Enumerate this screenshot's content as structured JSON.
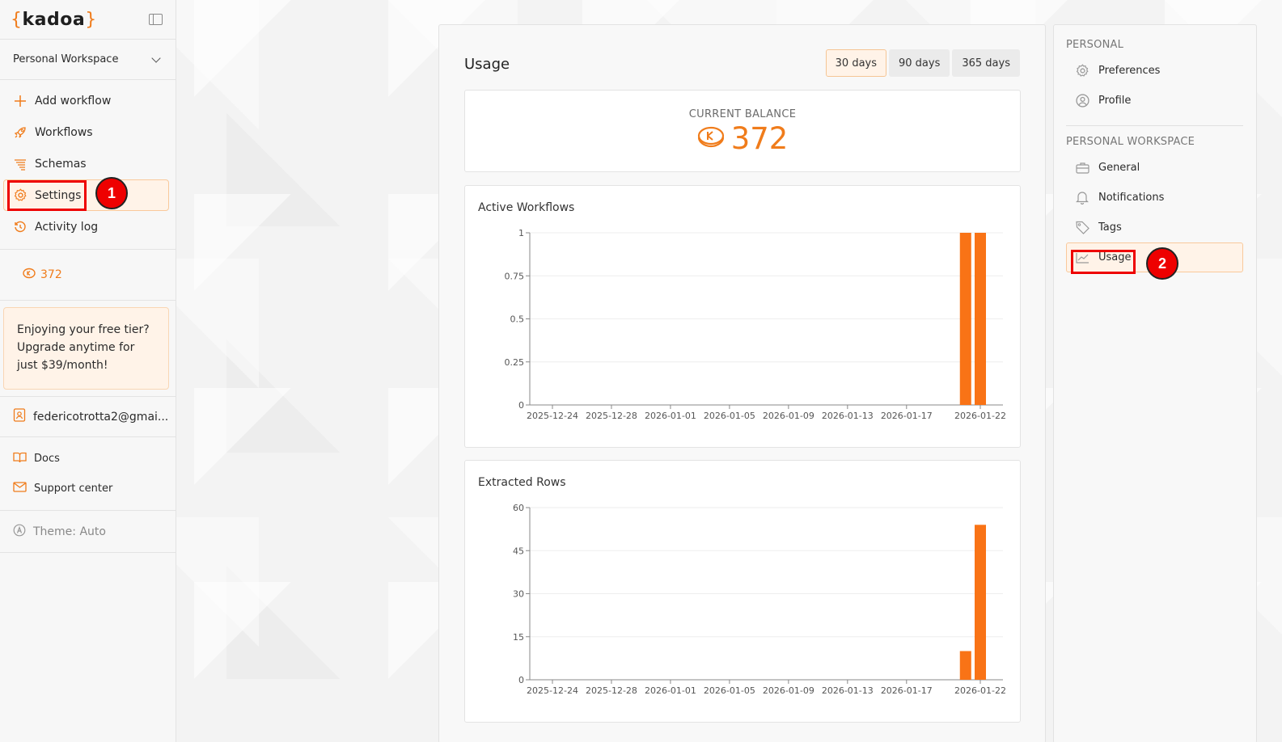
{
  "app": {
    "logo_text": "kadoa",
    "brand_color": "#f07c1b"
  },
  "workspace_selector": {
    "label": "Personal Workspace"
  },
  "nav": {
    "items": [
      {
        "label": "Add workflow",
        "icon": "plus-icon"
      },
      {
        "label": "Workflows",
        "icon": "rocket-icon"
      },
      {
        "label": "Schemas",
        "icon": "schema-icon"
      },
      {
        "label": "Settings",
        "icon": "gear-icon",
        "active": true
      },
      {
        "label": "Activity log",
        "icon": "history-icon"
      }
    ]
  },
  "credits": {
    "value": "372"
  },
  "promo": {
    "text": "Enjoying your free tier? Upgrade anytime for just $39/month!"
  },
  "user": {
    "email": "federicotrotta2@gmai..."
  },
  "links": {
    "docs": "Docs",
    "support": "Support center"
  },
  "theme": {
    "label": "Theme: Auto"
  },
  "annotations": {
    "badge1": "1",
    "badge2": "2"
  },
  "usage": {
    "title": "Usage",
    "ranges": [
      "30 days",
      "90 days",
      "365 days"
    ],
    "active_range": "30 days",
    "balance_label": "CURRENT BALANCE",
    "balance_value": "372"
  },
  "settings_menu": {
    "personal_title": "PERSONAL",
    "personal_items": [
      {
        "label": "Preferences",
        "icon": "gear-icon"
      },
      {
        "label": "Profile",
        "icon": "user-circle-icon"
      }
    ],
    "workspace_title": "PERSONAL WORKSPACE",
    "workspace_items": [
      {
        "label": "General",
        "icon": "briefcase-icon"
      },
      {
        "label": "Notifications",
        "icon": "bell-icon"
      },
      {
        "label": "Tags",
        "icon": "tag-icon"
      },
      {
        "label": "Usage",
        "icon": "chart-line-icon",
        "active": true
      }
    ]
  },
  "chart_data": [
    {
      "type": "bar",
      "title": "Active Workflows",
      "x_ticks": [
        "2025-12-24",
        "2025-12-28",
        "2026-01-01",
        "2026-01-05",
        "2026-01-09",
        "2026-01-13",
        "2026-01-17",
        "2026-01-22"
      ],
      "y_ticks": [
        "0",
        "0.25",
        "0.5",
        "0.75",
        "1"
      ],
      "ylim": [
        0,
        1
      ],
      "bars": [
        {
          "x": "2026-01-21",
          "value": 1
        },
        {
          "x": "2026-01-22",
          "value": 1
        }
      ],
      "bar_color": "#f97316"
    },
    {
      "type": "bar",
      "title": "Extracted Rows",
      "x_ticks": [
        "2025-12-24",
        "2025-12-28",
        "2026-01-01",
        "2026-01-05",
        "2026-01-09",
        "2026-01-13",
        "2026-01-17",
        "2026-01-22"
      ],
      "y_ticks": [
        "0",
        "15",
        "30",
        "45",
        "60"
      ],
      "ylim": [
        0,
        60
      ],
      "bars": [
        {
          "x": "2026-01-21",
          "value": 10
        },
        {
          "x": "2026-01-22",
          "value": 54
        }
      ],
      "bar_color": "#f97316"
    }
  ]
}
